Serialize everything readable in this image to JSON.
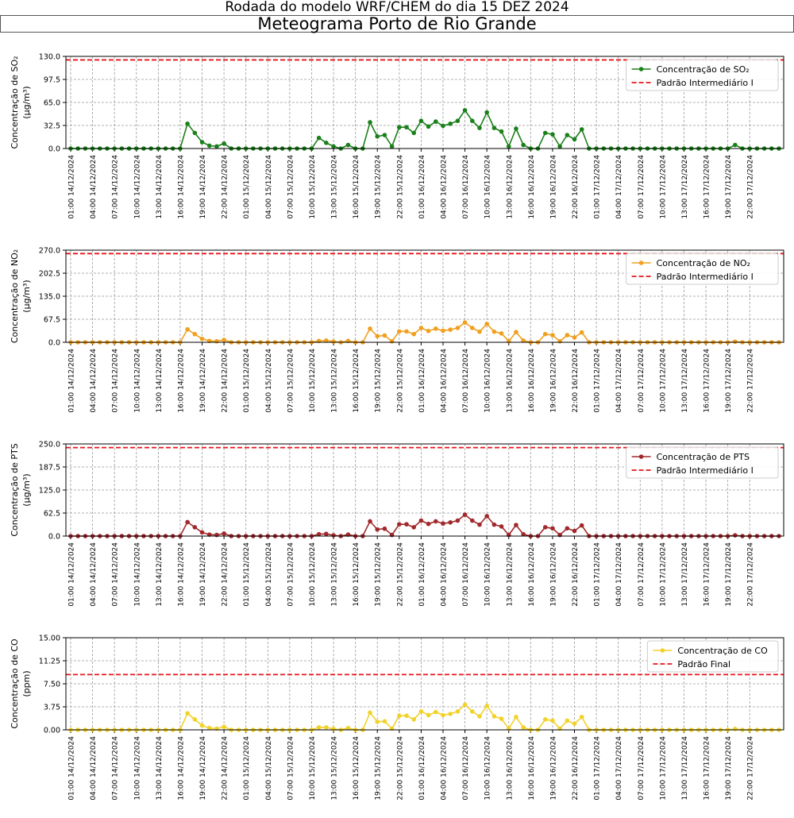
{
  "header": {
    "suptitle": "Rodada do modelo WRF/CHEM do dia 15 DEZ 2024",
    "title": "Meteograma Porto de Rio Grande"
  },
  "x_ticks": [
    "01:00 14/12/2024",
    "04:00 14/12/2024",
    "07:00 14/12/2024",
    "10:00 14/12/2024",
    "13:00 14/12/2024",
    "16:00 14/12/2024",
    "19:00 14/12/2024",
    "22:00 14/12/2024",
    "01:00 15/12/2024",
    "04:00 15/12/2024",
    "07:00 15/12/2024",
    "10:00 15/12/2024",
    "13:00 15/12/2024",
    "16:00 15/12/2024",
    "19:00 15/12/2024",
    "22:00 15/12/2024",
    "01:00 16/12/2024",
    "04:00 16/12/2024",
    "07:00 16/12/2024",
    "10:00 16/12/2024",
    "13:00 16/12/2024",
    "16:00 16/12/2024",
    "19:00 16/12/2024",
    "22:00 16/12/2024",
    "01:00 17/12/2024",
    "04:00 17/12/2024",
    "07:00 17/12/2024",
    "10:00 17/12/2024",
    "13:00 17/12/2024",
    "16:00 17/12/2024",
    "19:00 17/12/2024",
    "22:00 17/12/2024"
  ],
  "chart_data": [
    {
      "type": "line",
      "ylabel": "Concentração de SO₂",
      "yunit": "(μg/m³)",
      "ylim": [
        0,
        130
      ],
      "yticks": [
        "0.0",
        "32.5",
        "65.0",
        "97.5",
        "130.0"
      ],
      "color": "#1a801a",
      "threshold": 125,
      "threshold_color": "#e8141b",
      "legend": [
        "Concentração de SO₂",
        "Padrão Intermediário I"
      ],
      "legend_position": "top-right",
      "grid": true,
      "values": [
        0,
        0,
        0,
        0,
        0,
        0,
        0,
        0,
        0,
        0,
        0,
        0,
        0,
        0,
        0,
        0,
        35,
        22,
        9,
        4,
        3,
        7,
        0,
        0,
        0,
        0,
        0,
        0,
        0,
        0,
        0,
        0,
        0,
        0,
        15,
        8,
        3,
        0,
        5,
        0,
        0,
        37,
        17,
        19,
        3,
        30,
        30,
        22,
        39,
        31,
        38,
        32,
        35,
        39,
        54,
        39,
        29,
        51,
        29,
        24,
        3,
        28,
        5,
        0,
        0,
        22,
        20,
        3,
        19,
        13,
        27,
        0,
        0,
        0,
        0,
        0,
        0,
        0,
        0,
        0,
        0,
        0,
        0,
        0,
        0,
        0,
        0,
        0,
        0,
        0,
        0,
        5,
        0,
        0,
        0,
        0,
        0,
        0
      ]
    },
    {
      "type": "line",
      "ylabel": "Concentração de NO₂",
      "yunit": "(μg/m³)",
      "ylim": [
        0,
        270
      ],
      "yticks": [
        "0.0",
        "67.5",
        "135.0",
        "202.5",
        "270.0"
      ],
      "color": "#f0a01e",
      "threshold": 260,
      "threshold_color": "#e8141b",
      "legend": [
        "Concentração de NO₂",
        "Padrão Intermediário I"
      ],
      "legend_position": "top-right",
      "grid": true,
      "values": [
        0,
        0,
        0,
        0,
        0,
        0,
        0,
        0,
        0,
        0,
        0,
        0,
        0,
        0,
        0,
        0,
        38,
        24,
        10,
        4,
        3,
        7,
        0,
        0,
        0,
        0,
        0,
        0,
        0,
        0,
        0,
        0,
        0,
        0,
        4,
        5,
        2,
        0,
        4,
        0,
        0,
        40,
        18,
        20,
        3,
        32,
        32,
        24,
        42,
        33,
        40,
        34,
        37,
        42,
        58,
        42,
        31,
        54,
        31,
        26,
        3,
        30,
        5,
        0,
        0,
        24,
        21,
        3,
        21,
        14,
        29,
        0,
        0,
        0,
        0,
        0,
        0,
        0,
        0,
        0,
        0,
        0,
        0,
        0,
        0,
        0,
        0,
        0,
        0,
        0,
        0,
        2,
        0,
        0,
        0,
        0,
        0,
        0
      ]
    },
    {
      "type": "line",
      "ylabel": "Concentração de PTS",
      "yunit": "(μg/m³)",
      "ylim": [
        0,
        250
      ],
      "yticks": [
        "0.0",
        "62.5",
        "125.0",
        "187.5",
        "250.0"
      ],
      "color": "#a1282b",
      "threshold": 240,
      "threshold_color": "#e8141b",
      "legend": [
        "Concentração de PTS",
        "Padrão Intermediário I"
      ],
      "legend_position": "top-right",
      "grid": true,
      "values": [
        0,
        0,
        0,
        0,
        0,
        0,
        0,
        0,
        0,
        0,
        0,
        0,
        0,
        0,
        0,
        0,
        38,
        24,
        10,
        4,
        3,
        7,
        0,
        0,
        0,
        0,
        0,
        0,
        0,
        0,
        0,
        0,
        0,
        0,
        5,
        6,
        2,
        0,
        4,
        0,
        0,
        40,
        18,
        20,
        3,
        32,
        32,
        24,
        42,
        33,
        40,
        34,
        37,
        42,
        58,
        42,
        31,
        54,
        31,
        26,
        3,
        30,
        5,
        0,
        0,
        24,
        21,
        3,
        21,
        14,
        29,
        0,
        0,
        0,
        0,
        0,
        0,
        0,
        0,
        0,
        0,
        0,
        0,
        0,
        0,
        0,
        0,
        0,
        0,
        0,
        0,
        2,
        0,
        0,
        0,
        0,
        0,
        0
      ]
    },
    {
      "type": "line",
      "ylabel": "Concentração de CO",
      "yunit": "(ppm)",
      "ylim": [
        0,
        15
      ],
      "yticks": [
        "0.00",
        "3.75",
        "7.50",
        "11.25",
        "15.00"
      ],
      "color": "#f2d22a",
      "threshold": 9,
      "threshold_color": "#e8141b",
      "legend": [
        "Concentração de CO",
        "Padrão Final"
      ],
      "legend_position": "top-right",
      "grid": true,
      "values": [
        0,
        0,
        0,
        0,
        0,
        0,
        0,
        0,
        0,
        0,
        0,
        0,
        0,
        0,
        0,
        0,
        2.7,
        1.7,
        0.7,
        0.3,
        0.2,
        0.5,
        0,
        0,
        0,
        0,
        0,
        0,
        0,
        0,
        0,
        0,
        0,
        0,
        0.4,
        0.4,
        0.15,
        0,
        0.3,
        0,
        0,
        2.8,
        1.3,
        1.4,
        0.2,
        2.3,
        2.3,
        1.7,
        3.0,
        2.4,
        2.9,
        2.4,
        2.6,
        3.0,
        4.1,
        3.0,
        2.2,
        3.9,
        2.2,
        1.8,
        0.2,
        2.1,
        0.4,
        0,
        0,
        1.7,
        1.5,
        0.2,
        1.5,
        1.0,
        2.1,
        0,
        0,
        0,
        0,
        0,
        0,
        0,
        0,
        0,
        0,
        0,
        0,
        0,
        0,
        0,
        0,
        0,
        0,
        0,
        0,
        0.15,
        0,
        0,
        0,
        0,
        0,
        0
      ]
    }
  ]
}
